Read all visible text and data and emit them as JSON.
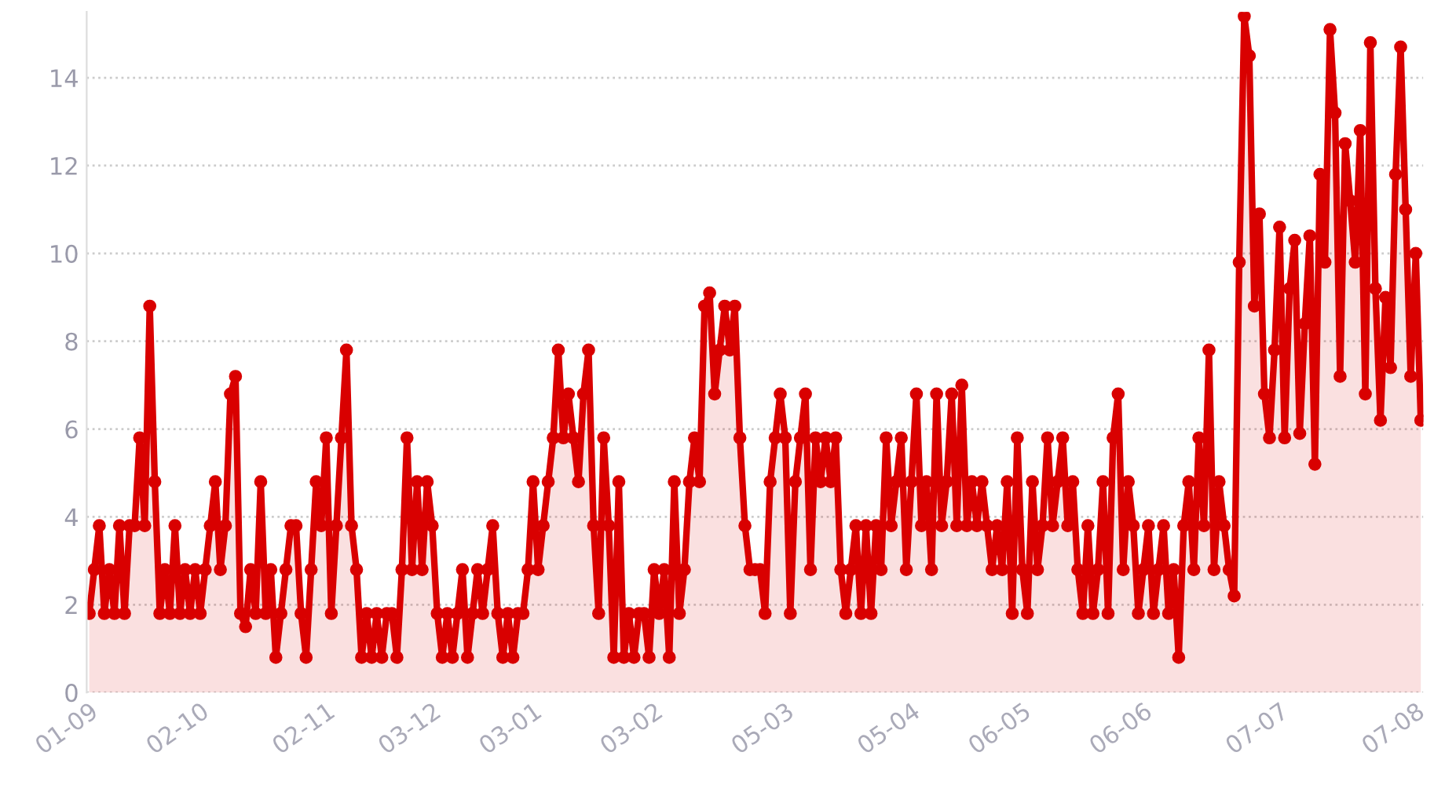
{
  "chart_data": {
    "type": "area",
    "marker": "circle",
    "grid": "y",
    "legend": false,
    "ylim": [
      0,
      15.5
    ],
    "yticks": [
      0,
      2,
      4,
      6,
      8,
      10,
      12,
      14
    ],
    "categories": [
      "01-09",
      null,
      null,
      null,
      null,
      null,
      null,
      null,
      null,
      null,
      null,
      null,
      null,
      null,
      null,
      null,
      null,
      null,
      null,
      null,
      null,
      null,
      "02-10",
      null,
      null,
      null,
      null,
      null,
      null,
      null,
      null,
      null,
      null,
      null,
      null,
      null,
      null,
      null,
      null,
      null,
      null,
      null,
      null,
      null,
      null,
      null,
      null,
      "02-11",
      null,
      null,
      null,
      null,
      null,
      null,
      null,
      null,
      null,
      null,
      null,
      null,
      null,
      null,
      null,
      null,
      null,
      null,
      null,
      null,
      "03-12",
      null,
      null,
      null,
      null,
      null,
      null,
      null,
      null,
      null,
      null,
      null,
      null,
      null,
      null,
      null,
      null,
      null,
      null,
      null,
      "03-01",
      null,
      null,
      null,
      null,
      null,
      null,
      null,
      null,
      null,
      null,
      null,
      null,
      null,
      null,
      null,
      null,
      null,
      null,
      null,
      null,
      null,
      null,
      null,
      "03-02",
      null,
      null,
      null,
      null,
      null,
      null,
      null,
      null,
      null,
      null,
      null,
      null,
      null,
      null,
      null,
      null,
      null,
      null,
      null,
      null,
      null,
      null,
      null,
      null,
      null,
      "05-03",
      null,
      null,
      null,
      null,
      null,
      null,
      null,
      null,
      null,
      null,
      null,
      null,
      null,
      null,
      null,
      null,
      null,
      null,
      null,
      null,
      null,
      null,
      null,
      null,
      "05-04",
      null,
      null,
      null,
      null,
      null,
      null,
      null,
      null,
      null,
      null,
      null,
      null,
      null,
      null,
      null,
      null,
      null,
      null,
      null,
      null,
      null,
      "06-05",
      null,
      null,
      null,
      null,
      null,
      null,
      null,
      null,
      null,
      null,
      null,
      null,
      null,
      null,
      null,
      null,
      null,
      null,
      null,
      null,
      null,
      null,
      null,
      "06-06",
      null,
      null,
      null,
      null,
      null,
      null,
      null,
      null,
      null,
      null,
      null,
      null,
      null,
      null,
      null,
      null,
      null,
      null,
      null,
      null,
      null,
      null,
      null,
      null,
      null,
      null,
      "07-07",
      null,
      null,
      null,
      null,
      null,
      null,
      null,
      null,
      null,
      null,
      null,
      null,
      null,
      null,
      null,
      null,
      null,
      null,
      null,
      null,
      null,
      null,
      null,
      null,
      null,
      null,
      "07-08",
      null
    ],
    "series": [
      {
        "color": "#d90000",
        "values": [
          1.8,
          2.8,
          3.8,
          1.8,
          2.8,
          1.8,
          3.8,
          1.8,
          3.8,
          3.8,
          5.8,
          3.8,
          8.8,
          4.8,
          1.8,
          2.8,
          1.8,
          3.8,
          1.8,
          2.8,
          1.8,
          2.8,
          1.8,
          2.8,
          3.8,
          4.8,
          2.8,
          3.8,
          6.8,
          7.2,
          1.8,
          1.5,
          2.8,
          1.8,
          4.8,
          1.8,
          2.8,
          0.8,
          1.8,
          2.8,
          3.8,
          3.8,
          1.8,
          0.8,
          2.8,
          4.8,
          3.8,
          5.8,
          1.8,
          3.8,
          5.8,
          7.8,
          3.8,
          2.8,
          0.8,
          1.8,
          0.8,
          1.8,
          0.8,
          1.8,
          1.8,
          0.8,
          2.8,
          5.8,
          2.8,
          4.8,
          2.8,
          4.8,
          3.8,
          1.8,
          0.8,
          1.8,
          0.8,
          1.8,
          2.8,
          0.8,
          1.8,
          2.8,
          1.8,
          2.8,
          3.8,
          1.8,
          0.8,
          1.8,
          0.8,
          1.8,
          1.8,
          2.8,
          4.8,
          2.8,
          3.8,
          4.8,
          5.8,
          7.8,
          5.8,
          6.8,
          5.8,
          4.8,
          6.8,
          7.8,
          3.8,
          1.8,
          5.8,
          3.8,
          0.8,
          4.8,
          0.8,
          1.8,
          0.8,
          1.8,
          1.8,
          0.8,
          2.8,
          1.8,
          2.8,
          0.8,
          4.8,
          1.8,
          2.8,
          4.8,
          5.8,
          4.8,
          8.8,
          9.1,
          6.8,
          7.8,
          8.8,
          7.8,
          8.8,
          5.8,
          3.8,
          2.8,
          2.8,
          2.8,
          1.8,
          4.8,
          5.8,
          6.8,
          5.8,
          1.8,
          4.8,
          5.8,
          6.8,
          2.8,
          5.8,
          4.8,
          5.8,
          4.8,
          5.8,
          2.8,
          1.8,
          2.8,
          3.8,
          1.8,
          3.8,
          1.8,
          3.8,
          2.8,
          5.8,
          3.8,
          4.8,
          5.8,
          2.8,
          4.8,
          6.8,
          3.8,
          4.8,
          2.8,
          6.8,
          3.8,
          4.8,
          6.8,
          3.8,
          7.0,
          3.8,
          4.8,
          3.8,
          4.8,
          3.8,
          2.8,
          3.8,
          2.8,
          4.8,
          1.8,
          5.8,
          2.8,
          1.8,
          4.8,
          2.8,
          3.8,
          5.8,
          3.8,
          4.8,
          5.8,
          3.8,
          4.8,
          2.8,
          1.8,
          3.8,
          1.8,
          2.8,
          4.8,
          1.8,
          5.8,
          6.8,
          2.8,
          4.8,
          3.8,
          1.8,
          2.8,
          3.8,
          1.8,
          2.8,
          3.8,
          1.8,
          2.8,
          0.8,
          3.8,
          4.8,
          2.8,
          5.8,
          3.8,
          7.8,
          2.8,
          4.8,
          3.8,
          2.8,
          2.2,
          9.8,
          15.4,
          14.5,
          8.8,
          10.9,
          6.8,
          5.8,
          7.8,
          10.6,
          5.8,
          9.2,
          10.3,
          5.9,
          8.4,
          10.4,
          5.2,
          11.8,
          9.8,
          15.1,
          13.2,
          7.2,
          12.5,
          11.2,
          9.8,
          12.8,
          6.8,
          14.8,
          9.2,
          6.2,
          9.0,
          7.4,
          11.8,
          14.7,
          11.0,
          7.2,
          10.0,
          6.2
        ]
      }
    ]
  }
}
